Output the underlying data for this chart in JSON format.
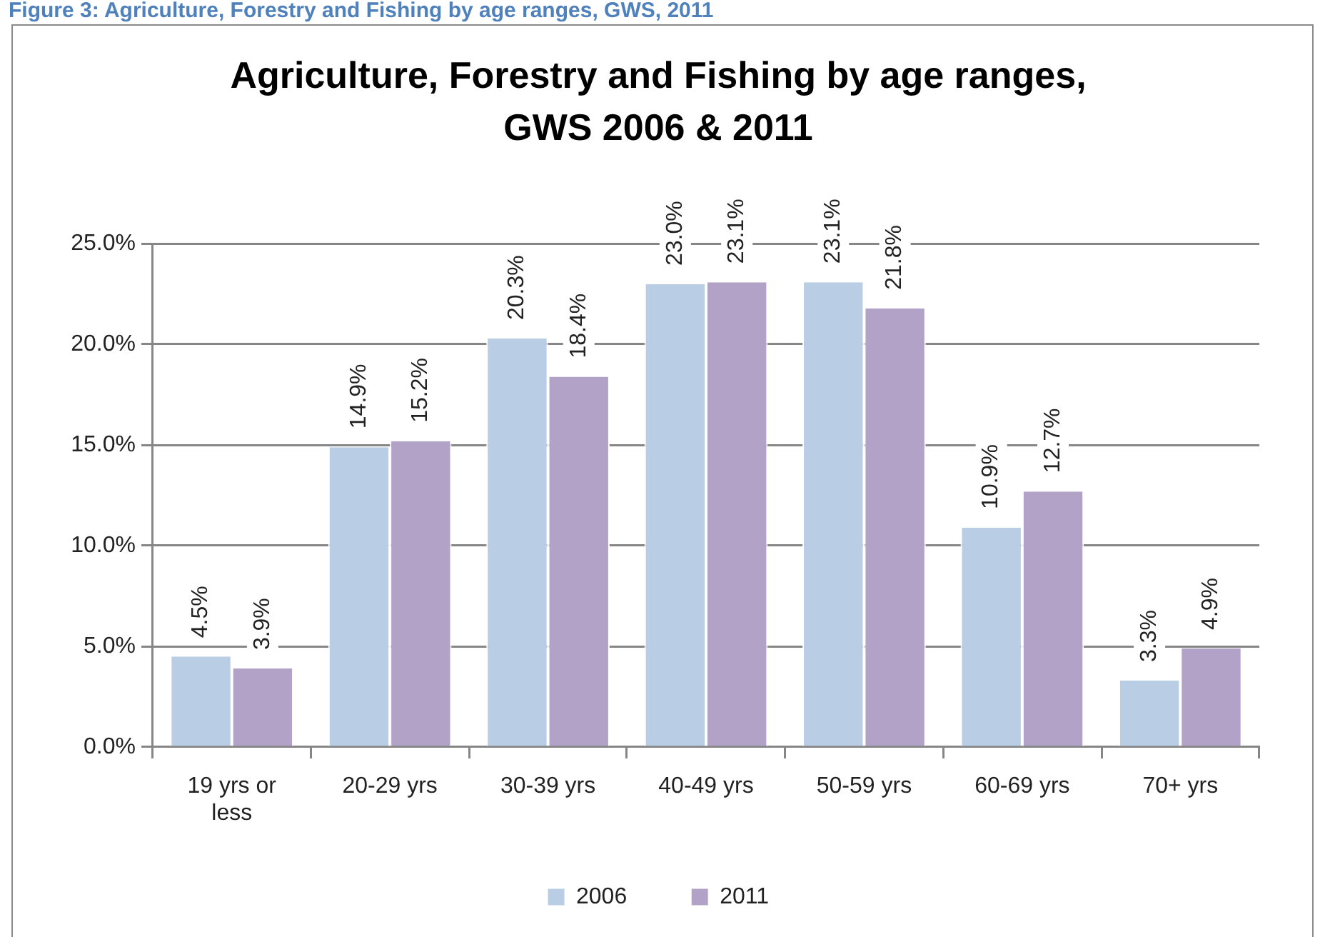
{
  "chart_data": {
    "type": "bar",
    "title": "Agriculture, Forestry and Fishing by age ranges, GWS 2006 & 2011",
    "annotations": [
      "Figure 3: Agriculture, Forestry and Fishing by age ranges, GWS, 2011"
    ],
    "categories": [
      "19 yrs or less",
      "20-29 yrs",
      "30-39 yrs",
      "40-49 yrs",
      "50-59 yrs",
      "60-69 yrs",
      "70+ yrs"
    ],
    "series": [
      {
        "name": "2006",
        "color": "#b9cde5",
        "values": [
          4.5,
          14.9,
          20.3,
          23.0,
          23.1,
          10.9,
          3.3
        ],
        "value_labels": [
          "4.5%",
          "14.9%",
          "20.3%",
          "23.0%",
          "23.1%",
          "10.9%",
          "3.3%"
        ]
      },
      {
        "name": "2011",
        "color": "#b3a2c7",
        "values": [
          3.9,
          15.2,
          18.4,
          23.1,
          21.8,
          12.7,
          4.9
        ],
        "value_labels": [
          "3.9%",
          "15.2%",
          "18.4%",
          "23.1%",
          "21.8%",
          "12.7%",
          "4.9%"
        ]
      }
    ],
    "ylim": [
      0,
      25
    ],
    "yticks": [
      {
        "value": 0,
        "label": "0.0%"
      },
      {
        "value": 5,
        "label": "5.0%"
      },
      {
        "value": 10,
        "label": "10.0%"
      },
      {
        "value": 15,
        "label": "15.0%"
      },
      {
        "value": 20,
        "label": "20.0%"
      },
      {
        "value": 25,
        "label": "25.0%"
      }
    ],
    "grid": "y",
    "legend": "bottom"
  }
}
